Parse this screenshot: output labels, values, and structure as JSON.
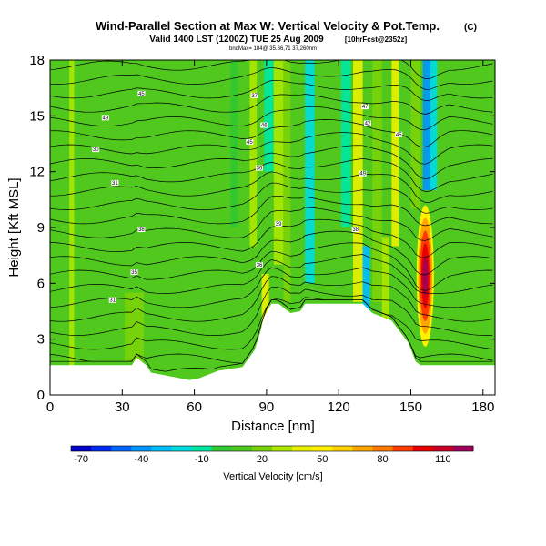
{
  "chart_data": {
    "type": "heatmap",
    "title": "Wind-Parallel Section at Max W: Vertical Velocity & Pot.Temp.",
    "title_mark": "(C)",
    "subtitle": "Valid 1400 LST (1200Z) TUE 25 Aug 2009",
    "subtitle_note": "[10hrFcst@2352z]",
    "caption": "bndMax= 184@ 35.66,71 37,260nm",
    "xlabel": "Distance [nm]",
    "ylabel": "Height [Kft MSL]",
    "xlim": [
      0,
      185
    ],
    "ylim": [
      0,
      18
    ],
    "xticks": [
      "0",
      "30",
      "60",
      "90",
      "120",
      "150",
      "180"
    ],
    "xtick_values": [
      0,
      30,
      60,
      90,
      120,
      150,
      180
    ],
    "yticks": [
      "0",
      "3",
      "6",
      "9",
      "12",
      "15",
      "18"
    ],
    "ytick_values": [
      0,
      3,
      6,
      9,
      12,
      15,
      18
    ],
    "colorbar": {
      "label": "Vertical Velocity [cm/s]",
      "min": -75,
      "max": 125,
      "tick_labels": [
        "-70",
        "-40",
        "-10",
        "20",
        "50",
        "80",
        "110"
      ],
      "tick_values": [
        -70,
        -40,
        -10,
        20,
        50,
        80,
        110
      ],
      "colors": [
        "#0000c8",
        "#0028f0",
        "#0064ff",
        "#0096ff",
        "#00beff",
        "#00dcdc",
        "#00e6a0",
        "#32c832",
        "#50c81e",
        "#78d20a",
        "#aae600",
        "#e6f000",
        "#fff000",
        "#ffd200",
        "#ffa500",
        "#ff7800",
        "#ff3c00",
        "#e60000",
        "#c80028",
        "#a0005a"
      ]
    },
    "terrain": {
      "x": [
        0,
        8,
        34,
        36,
        40,
        42,
        58,
        62,
        70,
        80,
        85,
        87,
        89,
        92,
        95,
        97,
        100,
        104,
        106,
        112,
        130,
        134,
        142,
        149,
        152,
        154,
        185
      ],
      "height": [
        1.6,
        1.6,
        1.6,
        2.0,
        1.6,
        1.2,
        0.8,
        0.9,
        1.3,
        1.5,
        2.4,
        3.2,
        4.2,
        4.9,
        4.9,
        4.7,
        4.4,
        4.5,
        4.9,
        4.9,
        4.9,
        4.4,
        4.0,
        2.8,
        1.8,
        1.6,
        1.6
      ]
    },
    "velocity_bands": [
      {
        "x": 8,
        "w": 2,
        "y0": 0,
        "y1": 18,
        "w_cms": 25
      },
      {
        "x": 31,
        "w": 8,
        "y0": 1.8,
        "y1": 5.5,
        "w_cms": 16
      },
      {
        "x": 47,
        "w": 6,
        "y0": 1,
        "y1": 6,
        "w_cms": 14
      },
      {
        "x": 75,
        "w": 3,
        "y0": 9,
        "y1": 18,
        "w_cms": -5
      },
      {
        "x": 83,
        "w": 3,
        "y0": 8,
        "y1": 18,
        "w_cms": 32
      },
      {
        "x": 86,
        "w": 3,
        "y0": 6,
        "y1": 18,
        "w_cms": 12
      },
      {
        "x": 88,
        "w": 3,
        "y0": 3.5,
        "y1": 6.5,
        "w_cms": 42
      },
      {
        "x": 89,
        "w": 4,
        "y0": 12,
        "y1": 18,
        "w_cms": -12
      },
      {
        "x": 93,
        "w": 4,
        "y0": 7,
        "y1": 18,
        "w_cms": 28
      },
      {
        "x": 97,
        "w": 3,
        "y0": 5,
        "y1": 18,
        "w_cms": 22
      },
      {
        "x": 102,
        "w": 3,
        "y0": 9,
        "y1": 18,
        "w_cms": 5
      },
      {
        "x": 106,
        "w": 4,
        "y0": 6,
        "y1": 18,
        "w_cms": -22
      },
      {
        "x": 112,
        "w": 4,
        "y0": 6,
        "y1": 18,
        "w_cms": 12
      },
      {
        "x": 121,
        "w": 4,
        "y0": 9,
        "y1": 18,
        "w_cms": -8
      },
      {
        "x": 126,
        "w": 4,
        "y0": 5,
        "y1": 18,
        "w_cms": 40
      },
      {
        "x": 130,
        "w": 3,
        "y0": 4.5,
        "y1": 8,
        "w_cms": -28
      },
      {
        "x": 134,
        "w": 4,
        "y0": 5,
        "y1": 18,
        "w_cms": 18
      },
      {
        "x": 138,
        "w": 3,
        "y0": 3.5,
        "y1": 8.5,
        "w_cms": 28
      },
      {
        "x": 142,
        "w": 3,
        "y0": 8,
        "y1": 18,
        "w_cms": 40
      },
      {
        "x": 145,
        "w": 3,
        "y0": 2,
        "y1": 7,
        "w_cms": 6
      },
      {
        "x": 150,
        "w": 4,
        "y0": 10,
        "y1": 18,
        "w_cms": 16
      },
      {
        "x": 155,
        "w": 4,
        "y0": 11,
        "y1": 18,
        "w_cms": -42
      },
      {
        "x": 158,
        "w": 3,
        "y0": 11,
        "y1": 18,
        "w_cms": -18
      },
      {
        "x": 163,
        "w": 3,
        "y0": 14,
        "y1": 18,
        "w_cms": 14
      },
      {
        "x": 168,
        "w": 4,
        "y0": 2,
        "y1": 12,
        "w_cms": 6
      }
    ],
    "updraft_core": {
      "x": 156,
      "y": 6.4,
      "rx": 3.6,
      "ry": 3.8,
      "w_cms": 115
    },
    "isentrope_labels": [
      {
        "x": 38,
        "y": 16.2,
        "text": "45"
      },
      {
        "x": 23,
        "y": 14.9,
        "text": "49"
      },
      {
        "x": 19,
        "y": 13.2,
        "text": "30"
      },
      {
        "x": 27,
        "y": 11.4,
        "text": "31"
      },
      {
        "x": 38,
        "y": 8.9,
        "text": "38"
      },
      {
        "x": 35,
        "y": 6.6,
        "text": "35"
      },
      {
        "x": 26,
        "y": 5.1,
        "text": "31"
      },
      {
        "x": 85,
        "y": 16.1,
        "text": "37"
      },
      {
        "x": 89,
        "y": 14.5,
        "text": "46"
      },
      {
        "x": 83,
        "y": 13.6,
        "text": "45"
      },
      {
        "x": 87,
        "y": 12.2,
        "text": "36"
      },
      {
        "x": 95,
        "y": 9.2,
        "text": "39"
      },
      {
        "x": 87,
        "y": 7.0,
        "text": "36"
      },
      {
        "x": 131,
        "y": 15.5,
        "text": "47"
      },
      {
        "x": 132,
        "y": 14.6,
        "text": "42"
      },
      {
        "x": 145,
        "y": 14.0,
        "text": "45"
      },
      {
        "x": 130,
        "y": 11.9,
        "text": "49"
      },
      {
        "x": 127,
        "y": 8.9,
        "text": "38"
      }
    ]
  }
}
